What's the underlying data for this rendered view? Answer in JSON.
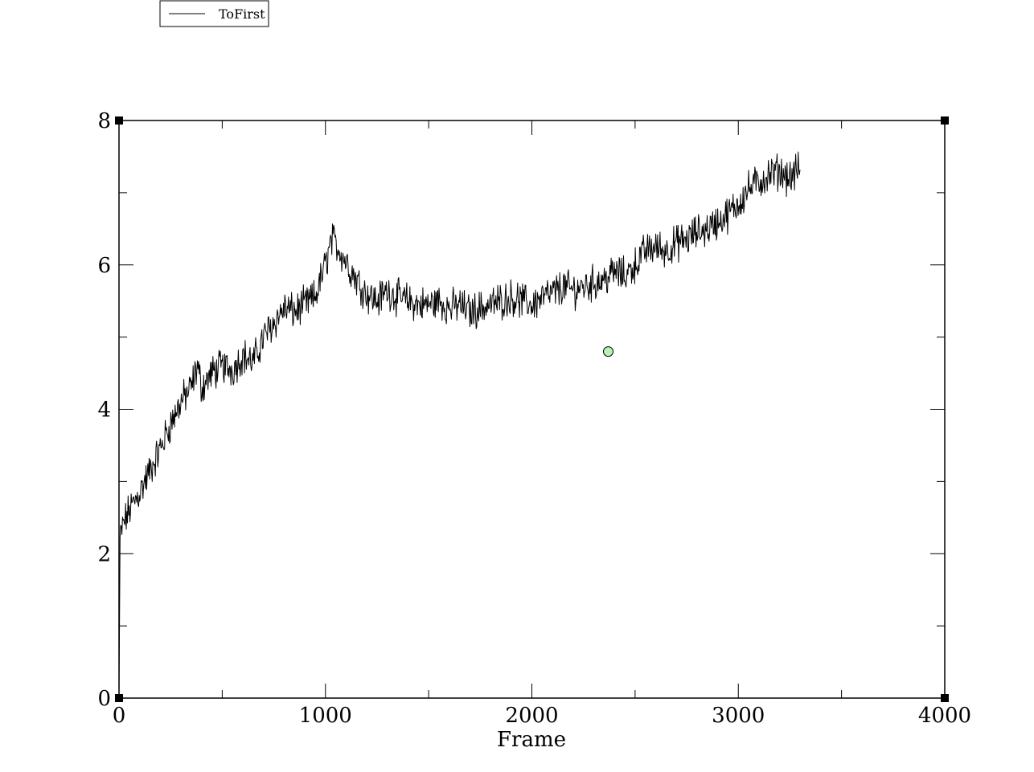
{
  "chart_data": {
    "type": "line",
    "title": "",
    "xlabel": "Frame",
    "ylabel": "",
    "xlim": [
      0,
      4000
    ],
    "ylim": [
      0,
      8
    ],
    "x_ticks_major": [
      0,
      1000,
      2000,
      3000,
      4000
    ],
    "x_tick_labels": [
      "0",
      "1000",
      "2000",
      "3000",
      "4000"
    ],
    "x_ticks_minor": [
      500,
      1500,
      2500,
      3500
    ],
    "y_ticks_major": [
      0,
      2,
      4,
      6,
      8
    ],
    "y_tick_labels": [
      "0",
      "2",
      "4",
      "6",
      "8"
    ],
    "y_ticks_minor": [
      1,
      3,
      5,
      7
    ],
    "grid": false,
    "legend_position": "top-left",
    "line_color": "#000000",
    "series": [
      {
        "name": "ToFirst",
        "x": [
          0,
          5,
          20,
          50,
          100,
          150,
          200,
          250,
          300,
          350,
          380,
          400,
          450,
          500,
          550,
          600,
          650,
          700,
          750,
          800,
          850,
          900,
          950,
          1000,
          1030,
          1060,
          1100,
          1150,
          1200,
          1250,
          1300,
          1350,
          1400,
          1450,
          1500,
          1550,
          1600,
          1650,
          1700,
          1750,
          1800,
          1850,
          1900,
          1950,
          2000,
          2050,
          2100,
          2150,
          2200,
          2250,
          2300,
          2350,
          2400,
          2450,
          2500,
          2550,
          2600,
          2650,
          2700,
          2750,
          2800,
          2850,
          2900,
          2950,
          3000,
          3050,
          3100,
          3150,
          3200,
          3250,
          3300
        ],
        "values": [
          0.0,
          2.2,
          2.4,
          2.6,
          2.85,
          3.15,
          3.45,
          3.8,
          4.1,
          4.3,
          4.6,
          4.3,
          4.5,
          4.6,
          4.55,
          4.75,
          4.65,
          5.0,
          5.2,
          5.4,
          5.35,
          5.45,
          5.55,
          6.0,
          6.35,
          6.25,
          6.05,
          5.8,
          5.6,
          5.5,
          5.65,
          5.55,
          5.5,
          5.45,
          5.45,
          5.5,
          5.4,
          5.45,
          5.35,
          5.4,
          5.45,
          5.5,
          5.55,
          5.5,
          5.45,
          5.55,
          5.6,
          5.7,
          5.65,
          5.7,
          5.75,
          5.8,
          5.9,
          5.85,
          6.0,
          6.2,
          6.25,
          6.2,
          6.3,
          6.35,
          6.45,
          6.5,
          6.6,
          6.7,
          6.85,
          7.05,
          7.15,
          7.25,
          7.3,
          7.2,
          7.35
        ],
        "noise_amplitude": 0.2
      }
    ],
    "annotations": [
      {
        "type": "marker",
        "x": 2370,
        "y": 4.8,
        "color": "#b8f0b8"
      }
    ]
  }
}
